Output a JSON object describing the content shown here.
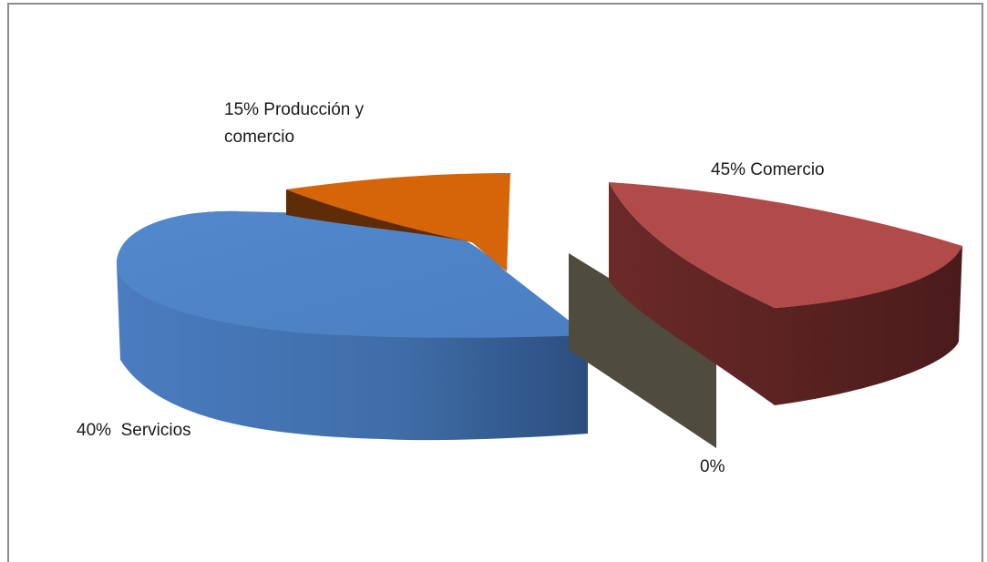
{
  "chart_data": {
    "type": "pie",
    "style": "3d-exploded",
    "title": "",
    "slices": [
      {
        "label": "Comercio",
        "value": 45,
        "percent_label": "45%",
        "color": "#B14B4A",
        "side_color": "#5A2120"
      },
      {
        "label": "",
        "value": 0,
        "percent_label": "0%",
        "color": "#4F4C3E",
        "side_color": "#4F4C3E"
      },
      {
        "label": "Servicios",
        "value": 40,
        "percent_label": "40%",
        "color": "#4F83C6",
        "side_color": "#3E6DAA"
      },
      {
        "label": "Producción y comercio",
        "value": 15,
        "percent_label": "15%",
        "color": "#D6650A",
        "side_color": "#5E2C06"
      }
    ],
    "data_labels": [
      {
        "text": "45% Comercio"
      },
      {
        "text": "0%"
      },
      {
        "text": "40%  Servicios"
      },
      {
        "text": "15% Producción y\ncomercio"
      }
    ],
    "legend": "none"
  }
}
